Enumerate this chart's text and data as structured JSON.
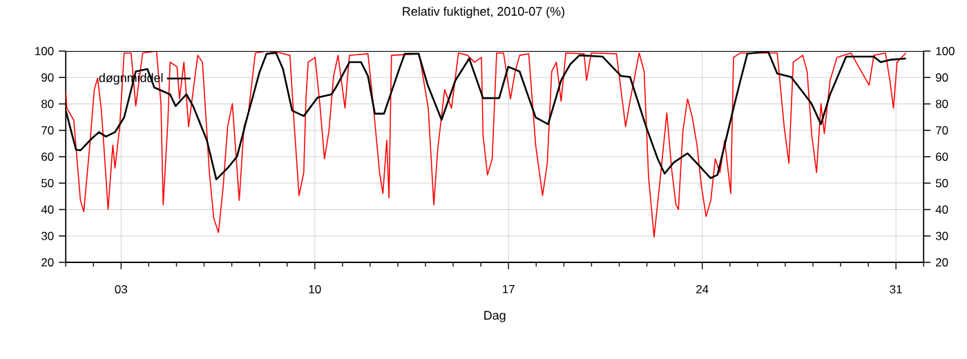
{
  "chart_data": {
    "type": "line",
    "title": "Relativ fuktighet, 2010-07 (%)",
    "xlabel": "Dag",
    "xlim": [
      1,
      32
    ],
    "ylim": [
      20,
      100
    ],
    "y2lim": [
      20,
      100
    ],
    "xticks": [
      {
        "value": 1,
        "label": null
      },
      {
        "value": 2,
        "label": null
      },
      {
        "value": 3,
        "label": "03"
      },
      {
        "value": 4,
        "label": null
      },
      {
        "value": 5,
        "label": null
      },
      {
        "value": 6,
        "label": null
      },
      {
        "value": 7,
        "label": null
      },
      {
        "value": 8,
        "label": null
      },
      {
        "value": 9,
        "label": null
      },
      {
        "value": 10,
        "label": "10"
      },
      {
        "value": 11,
        "label": null
      },
      {
        "value": 12,
        "label": null
      },
      {
        "value": 13,
        "label": null
      },
      {
        "value": 14,
        "label": null
      },
      {
        "value": 15,
        "label": null
      },
      {
        "value": 16,
        "label": null
      },
      {
        "value": 17,
        "label": "17"
      },
      {
        "value": 18,
        "label": null
      },
      {
        "value": 19,
        "label": null
      },
      {
        "value": 20,
        "label": null
      },
      {
        "value": 21,
        "label": null
      },
      {
        "value": 22,
        "label": null
      },
      {
        "value": 23,
        "label": null
      },
      {
        "value": 24,
        "label": "24"
      },
      {
        "value": 25,
        "label": null
      },
      {
        "value": 26,
        "label": null
      },
      {
        "value": 27,
        "label": null
      },
      {
        "value": 28,
        "label": null
      },
      {
        "value": 29,
        "label": null
      },
      {
        "value": 30,
        "label": null
      },
      {
        "value": 31,
        "label": "31"
      },
      {
        "value": 32,
        "label": null
      }
    ],
    "yticks": [
      20,
      30,
      40,
      50,
      60,
      70,
      80,
      90,
      100
    ],
    "y2ticks": [
      20,
      30,
      40,
      50,
      60,
      70,
      80,
      90,
      100
    ],
    "grid": true,
    "legend": "top left",
    "line_style": "solid",
    "series": [
      {
        "color": "#ff0000",
        "x": [
          1.0,
          1.04,
          1.29,
          1.53,
          1.65,
          1.87,
          2.03,
          2.15,
          2.28,
          2.37,
          2.53,
          2.7,
          2.78,
          2.95,
          3.11,
          3.36,
          3.53,
          3.78,
          4.28,
          4.44,
          4.52,
          4.69,
          4.77,
          5.02,
          5.11,
          5.27,
          5.44,
          5.61,
          5.77,
          5.94,
          6.19,
          6.35,
          6.52,
          6.69,
          6.85,
          7.02,
          7.27,
          7.44,
          7.6,
          7.85,
          8.26,
          8.76,
          9.1,
          9.26,
          9.43,
          9.6,
          9.68,
          9.76,
          10.01,
          10.18,
          10.35,
          10.51,
          10.68,
          10.84,
          11.09,
          11.25,
          11.92,
          12.09,
          12.34,
          12.46,
          12.6,
          12.68,
          12.77,
          13.77,
          14.1,
          14.3,
          14.44,
          14.69,
          14.94,
          15.19,
          15.52,
          15.77,
          16.02,
          16.08,
          16.24,
          16.41,
          16.57,
          16.82,
          17.07,
          17.24,
          17.4,
          17.73,
          17.98,
          18.23,
          18.4,
          18.56,
          18.73,
          18.9,
          19.07,
          19.73,
          19.82,
          19.99,
          20.9,
          21.23,
          21.39,
          21.72,
          21.9,
          22.06,
          22.26,
          22.47,
          22.72,
          22.89,
          23.05,
          23.14,
          23.3,
          23.47,
          23.64,
          23.81,
          23.97,
          24.14,
          24.31,
          24.47,
          24.64,
          24.81,
          25.03,
          25.13,
          25.38,
          26.71,
          26.96,
          27.13,
          27.29,
          27.63,
          27.79,
          27.96,
          28.13,
          28.29,
          28.41,
          28.62,
          28.87,
          29.37,
          30.03,
          30.2,
          30.62,
          30.78,
          30.91,
          31.04,
          31.36
        ],
        "values": [
          84.5,
          78.4,
          73.8,
          43.5,
          39.2,
          64.4,
          85.4,
          89.7,
          78.4,
          65.3,
          40,
          64.4,
          55.7,
          71.4,
          99.3,
          99.3,
          79.2,
          99.3,
          100,
          80.1,
          41.8,
          73.2,
          95.8,
          94.1,
          81.9,
          95.8,
          71.4,
          85.4,
          98.4,
          95.8,
          54,
          36.6,
          31.3,
          48.8,
          71.4,
          80.1,
          43.5,
          71.4,
          76.6,
          99.3,
          100,
          99.3,
          98.4,
          71.4,
          45.3,
          54,
          81.9,
          95.8,
          97.6,
          80.1,
          59.2,
          69.7,
          90.6,
          98.4,
          78.4,
          98.4,
          99,
          81.9,
          54,
          46.1,
          66.2,
          44.4,
          98.4,
          99,
          78.4,
          41.8,
          62.7,
          85.4,
          78.4,
          99.3,
          98.4,
          95.8,
          97.6,
          68,
          53.1,
          59.2,
          99.3,
          99.3,
          81.9,
          92.3,
          98.4,
          99,
          64.4,
          45.3,
          57.5,
          92.3,
          95.8,
          81,
          99.3,
          99,
          88.9,
          99.3,
          99,
          71.4,
          81,
          99.3,
          92.3,
          52.3,
          29.6,
          50.5,
          76.6,
          55.7,
          41.8,
          40,
          69.7,
          81.9,
          74.9,
          64.4,
          48.8,
          37.4,
          43.5,
          59.2,
          54,
          66.2,
          46.1,
          97.6,
          99.3,
          99.3,
          71.4,
          57.5,
          95.8,
          98.4,
          92.3,
          68,
          54,
          80.1,
          68.8,
          88.9,
          97.6,
          99.3,
          87.1,
          98.4,
          99.3,
          88.9,
          78.4,
          95.8,
          99.3
        ]
      },
      {
        "name": "døgnmiddel",
        "color": "#000000",
        "x": [
          1.0,
          1.37,
          1.53,
          1.95,
          2.2,
          2.45,
          2.78,
          3.11,
          3.53,
          3.95,
          4.2,
          4.77,
          4.97,
          5.36,
          5.6,
          6.1,
          6.44,
          6.85,
          7.19,
          7.6,
          8.01,
          8.26,
          8.6,
          8.85,
          9.18,
          9.6,
          10.1,
          10.6,
          10.76,
          11.25,
          11.67,
          11.92,
          12.17,
          12.5,
          13.08,
          13.25,
          13.75,
          14.08,
          14.58,
          15.08,
          15.58,
          16.08,
          16.66,
          16.99,
          17.4,
          17.98,
          18.43,
          18.9,
          19.23,
          19.56,
          20.4,
          21.06,
          21.39,
          21.97,
          22.39,
          22.64,
          22.97,
          23.47,
          23.89,
          24.3,
          24.55,
          25.13,
          25.38,
          25.63,
          26.38,
          26.71,
          27.21,
          27.63,
          27.95,
          28.29,
          28.62,
          29.2,
          30.2,
          30.45,
          30.78,
          31.36
        ],
        "values": [
          77.5,
          62.7,
          62.4,
          67,
          69.3,
          67.6,
          69.3,
          74.9,
          92.3,
          93.2,
          86.2,
          83.6,
          79.2,
          83.6,
          79.2,
          66.2,
          51.4,
          55.7,
          60.1,
          76.6,
          92.3,
          99,
          99.3,
          93.2,
          77.5,
          75.4,
          82.4,
          83.6,
          86.2,
          95.8,
          95.8,
          90.6,
          76.3,
          76.3,
          94.1,
          99,
          99,
          87.1,
          74,
          88.9,
          97.2,
          82.2,
          82.2,
          94.1,
          92.3,
          74.9,
          72.3,
          88.9,
          95,
          98.4,
          97.9,
          90.6,
          90.2,
          71.4,
          59.2,
          53.6,
          57.8,
          61.3,
          56.6,
          51.9,
          53.1,
          78.4,
          88.9,
          99,
          99.8,
          91.5,
          90.2,
          84.5,
          80.1,
          72.3,
          83.6,
          97.9,
          97.9,
          95.8,
          96.7,
          97.2
        ]
      }
    ]
  }
}
